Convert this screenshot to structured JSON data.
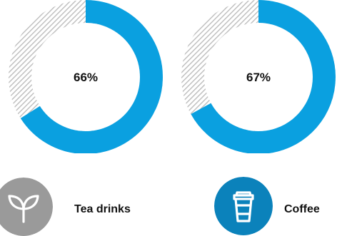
{
  "chart_data": [
    {
      "type": "pie",
      "category": "Tea drinks",
      "value": 66,
      "value_label": "66%",
      "icon": "sprout-icon",
      "colors": {
        "filled": "#0aa0e0",
        "remainder": "#b8b8b8",
        "icon_bg": "#9a9a9a"
      }
    },
    {
      "type": "pie",
      "category": "Coffee",
      "value": 67,
      "value_label": "67%",
      "icon": "coffee-cup-icon",
      "colors": {
        "filled": "#0aa0e0",
        "remainder": "#b8b8b8",
        "icon_bg": "#0b82bb"
      }
    }
  ]
}
